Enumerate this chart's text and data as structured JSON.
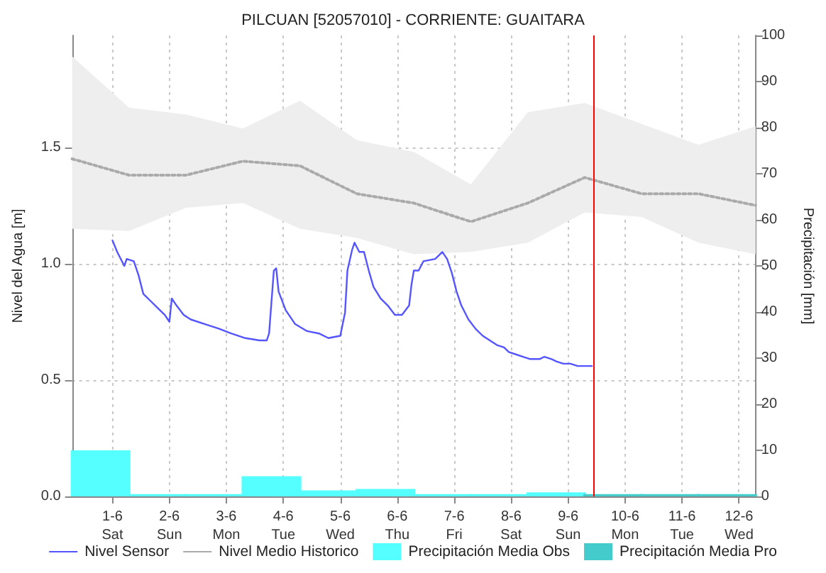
{
  "chart_data": {
    "type": "line",
    "title": "PILCUAN [52057010] - CORRIENTE: GUAITARA",
    "ylabel": "Nivel del Agua [m]",
    "y2label": "Precipitación [mm]",
    "xlim": [
      "--05-31T07:00",
      "--06-12T07:00"
    ],
    "xticks": [
      {
        "value": "--06-01T00:00",
        "label": "1-6\nSat"
      },
      {
        "value": "--06-02T00:00",
        "label": "2-6\nSun"
      },
      {
        "value": "--06-03T00:00",
        "label": "3-6\nMon"
      },
      {
        "value": "--06-04T00:00",
        "label": "4-6\nTue"
      },
      {
        "value": "--06-05T00:00",
        "label": "5-6\nWed"
      },
      {
        "value": "--06-06T00:00",
        "label": "6-6\nThu"
      },
      {
        "value": "--06-07T00:00",
        "label": "7-6\nFri"
      },
      {
        "value": "--06-08T00:00",
        "label": "8-6\nSat"
      },
      {
        "value": "--06-09T00:00",
        "label": "9-6\nSun"
      },
      {
        "value": "--06-10T00:00",
        "label": "10-6\nMon"
      },
      {
        "value": "--06-11T00:00",
        "label": "11-6\nTue"
      },
      {
        "value": "--06-12T00:00",
        "label": "12-6\nWed"
      }
    ],
    "ylim": [
      0,
      1.98
    ],
    "yticks": [
      {
        "value": 0,
        "label": "0.0"
      },
      0.5,
      {
        "value": 1,
        "label": "1.0"
      },
      1.5
    ],
    "y2lim": [
      0,
      100
    ],
    "y2ticks": [
      0,
      10,
      20,
      30,
      40,
      50,
      60,
      70,
      80,
      90,
      100
    ],
    "grid": true,
    "legend": "bottom",
    "marker": "none",
    "series": [
      {
        "name": "Nivel Sensor",
        "color": "#5555ff",
        "line_style": "solid",
        "x": [
          "--06-01T00:00",
          "--06-01T02:00",
          "--06-01T05:00",
          "--06-01T06:00",
          "--06-01T09:00",
          "--06-01T11:00",
          "--06-01T13:00",
          "--06-01T16:00",
          "--06-01T19:00",
          "--06-01T22:00",
          "--06-02T00:00",
          "--06-02T01:00",
          "--06-02T03:00",
          "--06-02T06:00",
          "--06-02T09:00",
          "--06-02T15:00",
          "--06-02T21:00",
          "--06-03T02:00",
          "--06-03T08:00",
          "--06-03T14:00",
          "--06-03T17:00",
          "--06-03T18:00",
          "--06-03T20:00",
          "--06-03T21:00",
          "--06-03T22:00",
          "--06-04T01:00",
          "--06-04T05:00",
          "--06-04T10:00",
          "--06-04T15:00",
          "--06-04T19:00",
          "--06-05T00:00",
          "--06-05T02:00",
          "--06-05T03:00",
          "--06-05T05:00",
          "--06-05T06:00",
          "--06-05T08:00",
          "--06-05T10:00",
          "--06-05T12:00",
          "--06-05T14:00",
          "--06-05T17:00",
          "--06-05T20:00",
          "--06-05T23:00",
          "--06-06T02:00",
          "--06-06T05:00",
          "--06-06T06:00",
          "--06-06T07:00",
          "--06-06T09:00",
          "--06-06T11:00",
          "--06-06T16:00",
          "--06-06T19:00",
          "--06-06T21:00",
          "--06-06T23:00",
          "--06-07T01:00",
          "--06-07T03:00",
          "--06-07T06:00",
          "--06-07T09:00",
          "--06-07T12:00",
          "--06-07T15:00",
          "--06-07T18:00",
          "--06-07T21:00",
          "--06-07T23:00",
          "--06-08T02:00",
          "--06-08T05:00",
          "--06-08T08:00",
          "--06-08T12:00",
          "--06-08T14:00",
          "--06-08T17:00",
          "--06-08T19:00",
          "--06-08T22:00",
          "--06-09T01:00",
          "--06-09T04:00",
          "--06-09T10:00"
        ],
        "values": [
          1.1,
          1.05,
          0.99,
          1.02,
          1.01,
          0.95,
          0.87,
          0.84,
          0.81,
          0.78,
          0.75,
          0.85,
          0.82,
          0.78,
          0.76,
          0.74,
          0.72,
          0.7,
          0.68,
          0.67,
          0.67,
          0.7,
          0.97,
          0.98,
          0.88,
          0.8,
          0.74,
          0.71,
          0.7,
          0.68,
          0.69,
          0.79,
          0.97,
          1.06,
          1.09,
          1.05,
          1.05,
          0.97,
          0.9,
          0.85,
          0.82,
          0.78,
          0.78,
          0.82,
          0.91,
          0.97,
          0.97,
          1.01,
          1.02,
          1.05,
          1.02,
          0.96,
          0.88,
          0.82,
          0.76,
          0.72,
          0.69,
          0.67,
          0.65,
          0.64,
          0.62,
          0.61,
          0.6,
          0.59,
          0.59,
          0.6,
          0.59,
          0.58,
          0.57,
          0.57,
          0.56,
          0.56
        ]
      },
      {
        "name": "Nivel Medio Historico",
        "type": "line",
        "color": "#aaaaaa",
        "line_style": "dotted",
        "x": [
          "--05-31T07:00",
          "--06-01T07:00",
          "--06-02T07:00",
          "--06-03T07:00",
          "--06-04T07:00",
          "--06-05T07:00",
          "--06-06T07:00",
          "--06-07T07:00",
          "--06-08T07:00",
          "--06-09T07:00",
          "--06-10T07:00",
          "--06-11T07:00",
          "--06-12T07:00"
        ],
        "values": [
          1.45,
          1.38,
          1.38,
          1.44,
          1.42,
          1.3,
          1.26,
          1.18,
          1.26,
          1.37,
          1.3,
          1.3,
          1.25
        ],
        "lower": [
          1.15,
          1.14,
          1.24,
          1.26,
          1.15,
          1.11,
          1.04,
          1.05,
          1.09,
          1.22,
          1.2,
          1.09,
          1.04
        ],
        "upper": [
          1.89,
          1.67,
          1.64,
          1.58,
          1.7,
          1.53,
          1.48,
          1.34,
          1.65,
          1.69,
          1.6,
          1.51,
          1.59
        ]
      },
      {
        "name": "Precipitación Media Obs",
        "type": "bar",
        "axis": "y2",
        "color": "#55ffff",
        "x": [
          "--05-31T19:00",
          "--06-01T19:00",
          "--06-02T19:00",
          "--06-03T19:00",
          "--06-04T19:00",
          "--06-05T19:00",
          "--06-06T19:00",
          "--06-07T19:00",
          "--06-08T19:00"
        ],
        "values": [
          10,
          0.5,
          0.5,
          4.4,
          1.3,
          1.6,
          0.5,
          0.5,
          0.9
        ]
      },
      {
        "name": "Precipitación Media Pro",
        "type": "bar",
        "axis": "y2",
        "color": "#44cccc",
        "x": [
          "--06-09T19:00",
          "--06-10T19:00",
          "--06-11T19:00"
        ],
        "values": [
          0.5,
          0.5,
          0.5
        ]
      }
    ],
    "ref_lines": [
      {
        "axis": "x",
        "value": "--06-09T11:00",
        "color": "#ff0000",
        "line_style": "solid"
      }
    ]
  }
}
